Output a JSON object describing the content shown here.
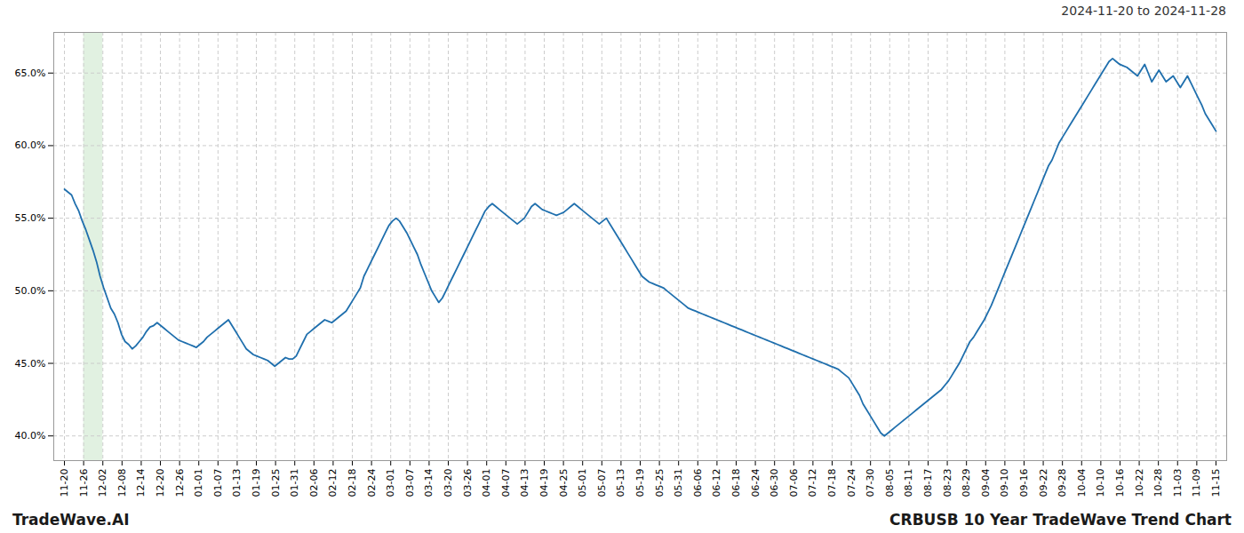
{
  "chart_data": {
    "type": "line",
    "title": "CRBUSB 10 Year TradeWave Trend Chart",
    "subtitle": "2024-11-20 to 2024-11-28",
    "annotations": [
      "TradeWave.AI"
    ],
    "color": "#1f6fad",
    "grid": true,
    "line_style": "solid",
    "ylim": [
      0.383,
      0.678
    ],
    "yticks": [
      {
        "value": 0.4,
        "label": "40.0%"
      },
      {
        "value": 0.45,
        "label": "45.0%"
      },
      {
        "value": 0.5,
        "label": "50.0%"
      },
      {
        "value": 0.55,
        "label": "55.0%"
      },
      {
        "value": 0.6,
        "label": "60.0%"
      },
      {
        "value": 0.65,
        "label": "65.0%"
      }
    ],
    "xlim": [
      -3,
      326
    ],
    "xticks": [
      {
        "value": 0,
        "label": "11-20"
      },
      {
        "value": 5.383,
        "label": "11-26"
      },
      {
        "value": 10.767,
        "label": "12-02"
      },
      {
        "value": 16.15,
        "label": "12-08"
      },
      {
        "value": 21.533,
        "label": "12-14"
      },
      {
        "value": 26.917,
        "label": "12-20"
      },
      {
        "value": 32.3,
        "label": "12-26"
      },
      {
        "value": 37.683,
        "label": "01-01"
      },
      {
        "value": 43.067,
        "label": "01-07"
      },
      {
        "value": 48.45,
        "label": "01-13"
      },
      {
        "value": 53.833,
        "label": "01-19"
      },
      {
        "value": 59.217,
        "label": "01-25"
      },
      {
        "value": 64.6,
        "label": "01-31"
      },
      {
        "value": 69.983,
        "label": "02-06"
      },
      {
        "value": 75.367,
        "label": "02-12"
      },
      {
        "value": 80.75,
        "label": "02-18"
      },
      {
        "value": 86.133,
        "label": "02-24"
      },
      {
        "value": 91.517,
        "label": "03-01"
      },
      {
        "value": 96.9,
        "label": "03-07"
      },
      {
        "value": 102.283,
        "label": "03-14"
      },
      {
        "value": 107.667,
        "label": "03-20"
      },
      {
        "value": 113.05,
        "label": "03-26"
      },
      {
        "value": 118.433,
        "label": "04-01"
      },
      {
        "value": 123.817,
        "label": "04-07"
      },
      {
        "value": 129.2,
        "label": "04-13"
      },
      {
        "value": 134.583,
        "label": "04-19"
      },
      {
        "value": 139.967,
        "label": "04-25"
      },
      {
        "value": 145.35,
        "label": "05-01"
      },
      {
        "value": 150.733,
        "label": "05-07"
      },
      {
        "value": 156.117,
        "label": "05-13"
      },
      {
        "value": 161.5,
        "label": "05-19"
      },
      {
        "value": 166.883,
        "label": "05-25"
      },
      {
        "value": 172.267,
        "label": "05-31"
      },
      {
        "value": 177.65,
        "label": "06-06"
      },
      {
        "value": 183.033,
        "label": "06-12"
      },
      {
        "value": 188.417,
        "label": "06-18"
      },
      {
        "value": 193.8,
        "label": "06-24"
      },
      {
        "value": 199.183,
        "label": "06-30"
      },
      {
        "value": 204.567,
        "label": "07-06"
      },
      {
        "value": 209.95,
        "label": "07-12"
      },
      {
        "value": 215.333,
        "label": "07-18"
      },
      {
        "value": 220.717,
        "label": "07-24"
      },
      {
        "value": 226.1,
        "label": "07-30"
      },
      {
        "value": 231.483,
        "label": "08-05"
      },
      {
        "value": 236.867,
        "label": "08-11"
      },
      {
        "value": 242.25,
        "label": "08-17"
      },
      {
        "value": 247.633,
        "label": "08-23"
      },
      {
        "value": 253.017,
        "label": "08-29"
      },
      {
        "value": 258.4,
        "label": "09-04"
      },
      {
        "value": 263.783,
        "label": "09-10"
      },
      {
        "value": 269.167,
        "label": "09-16"
      },
      {
        "value": 274.55,
        "label": "09-22"
      },
      {
        "value": 279.933,
        "label": "09-28"
      },
      {
        "value": 285.317,
        "label": "10-04"
      },
      {
        "value": 290.7,
        "label": "10-10"
      },
      {
        "value": 296.083,
        "label": "10-16"
      },
      {
        "value": 301.467,
        "label": "10-22"
      },
      {
        "value": 306.85,
        "label": "10-28"
      },
      {
        "value": 312.233,
        "label": "11-03"
      },
      {
        "value": 317.617,
        "label": "11-09"
      },
      {
        "value": 323,
        "label": "11-15"
      }
    ],
    "values": [
      0.57,
      0.568,
      0.566,
      0.56,
      0.555,
      0.548,
      0.542,
      0.535,
      0.528,
      0.52,
      0.51,
      0.502,
      0.495,
      0.488,
      0.484,
      0.478,
      0.47,
      0.465,
      0.463,
      0.46,
      0.462,
      0.465,
      0.468,
      0.472,
      0.475,
      0.476,
      0.478,
      0.476,
      0.474,
      0.472,
      0.47,
      0.468,
      0.466,
      0.465,
      0.464,
      0.463,
      0.462,
      0.461,
      0.463,
      0.465,
      0.468,
      0.47,
      0.472,
      0.474,
      0.476,
      0.478,
      0.48,
      0.476,
      0.472,
      0.468,
      0.464,
      0.46,
      0.458,
      0.456,
      0.455,
      0.454,
      0.453,
      0.452,
      0.45,
      0.448,
      0.45,
      0.452,
      0.454,
      0.453,
      0.453,
      0.455,
      0.46,
      0.465,
      0.47,
      0.472,
      0.474,
      0.476,
      0.478,
      0.48,
      0.479,
      0.478,
      0.48,
      0.482,
      0.484,
      0.486,
      0.49,
      0.494,
      0.498,
      0.502,
      0.51,
      0.515,
      0.52,
      0.525,
      0.53,
      0.535,
      0.54,
      0.545,
      0.548,
      0.55,
      0.548,
      0.544,
      0.54,
      0.535,
      0.53,
      0.525,
      0.518,
      0.512,
      0.506,
      0.5,
      0.496,
      0.492,
      0.495,
      0.5,
      0.505,
      0.51,
      0.515,
      0.52,
      0.525,
      0.53,
      0.535,
      0.54,
      0.545,
      0.55,
      0.555,
      0.558,
      0.56,
      0.558,
      0.556,
      0.554,
      0.552,
      0.55,
      0.548,
      0.546,
      0.548,
      0.55,
      0.554,
      0.558,
      0.56,
      0.558,
      0.556,
      0.555,
      0.554,
      0.553,
      0.552,
      0.553,
      0.554,
      0.556,
      0.558,
      0.56,
      0.558,
      0.556,
      0.554,
      0.552,
      0.55,
      0.548,
      0.546,
      0.548,
      0.55,
      0.546,
      0.542,
      0.538,
      0.534,
      0.53,
      0.526,
      0.522,
      0.518,
      0.514,
      0.51,
      0.508,
      0.506,
      0.505,
      0.504,
      0.503,
      0.502,
      0.5,
      0.498,
      0.496,
      0.494,
      0.492,
      0.49,
      0.488,
      0.487,
      0.486,
      0.485,
      0.484,
      0.483,
      0.482,
      0.481,
      0.48,
      0.479,
      0.478,
      0.477,
      0.476,
      0.475,
      0.474,
      0.473,
      0.472,
      0.471,
      0.47,
      0.469,
      0.468,
      0.467,
      0.466,
      0.465,
      0.464,
      0.463,
      0.462,
      0.461,
      0.46,
      0.459,
      0.458,
      0.457,
      0.456,
      0.455,
      0.454,
      0.453,
      0.452,
      0.451,
      0.45,
      0.449,
      0.448,
      0.447,
      0.446,
      0.444,
      0.442,
      0.44,
      0.436,
      0.432,
      0.428,
      0.422,
      0.418,
      0.414,
      0.41,
      0.406,
      0.402,
      0.4,
      0.402,
      0.404,
      0.406,
      0.408,
      0.41,
      0.412,
      0.414,
      0.416,
      0.418,
      0.42,
      0.422,
      0.424,
      0.426,
      0.428,
      0.43,
      0.432,
      0.435,
      0.438,
      0.442,
      0.446,
      0.45,
      0.455,
      0.46,
      0.465,
      0.468,
      0.472,
      0.476,
      0.48,
      0.485,
      0.49,
      0.496,
      0.502,
      0.508,
      0.514,
      0.52,
      0.526,
      0.532,
      0.538,
      0.544,
      0.55,
      0.556,
      0.562,
      0.568,
      0.574,
      0.58,
      0.586,
      0.59,
      0.596,
      0.602,
      0.606,
      0.61,
      0.614,
      0.618,
      0.622,
      0.626,
      0.63,
      0.634,
      0.638,
      0.642,
      0.646,
      0.65,
      0.654,
      0.658,
      0.66,
      0.658,
      0.656,
      0.655,
      0.654,
      0.652,
      0.65,
      0.648,
      0.652,
      0.656,
      0.65,
      0.644,
      0.648,
      0.652,
      0.648,
      0.644,
      0.646,
      0.648,
      0.644,
      0.64,
      0.644,
      0.648,
      0.643,
      0.638,
      0.633,
      0.628,
      0.622,
      0.618,
      0.614,
      0.61
    ]
  }
}
